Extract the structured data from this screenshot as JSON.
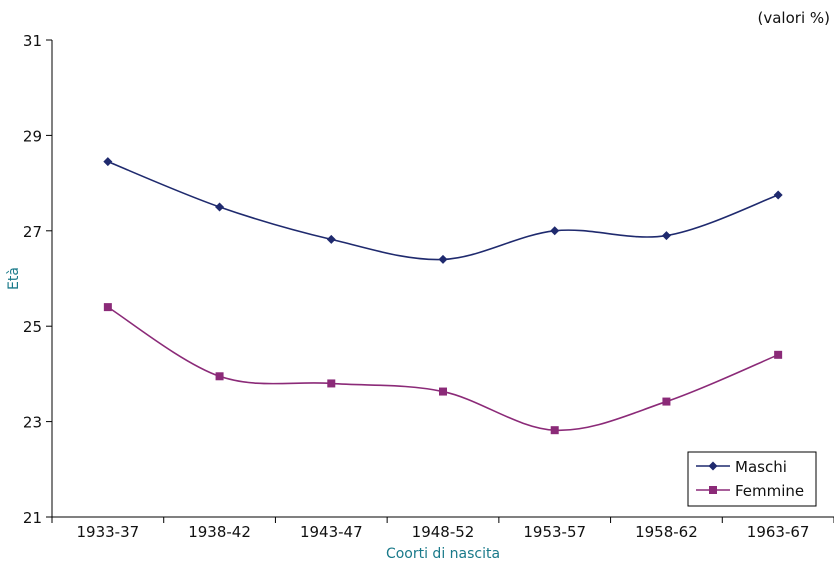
{
  "chart_data": {
    "type": "line",
    "note": "(valori %)",
    "xlabel": "Coorti di nascita",
    "ylabel": "Età",
    "categories": [
      "1933-37",
      "1938-42",
      "1943-47",
      "1948-52",
      "1953-57",
      "1958-62",
      "1963-67"
    ],
    "ylim": [
      21,
      31
    ],
    "yticks": [
      21,
      23,
      25,
      27,
      29,
      31
    ],
    "grid": false,
    "legend_position": "bottom-right",
    "title_color": "#1a7a8a",
    "series": [
      {
        "name": "Maschi",
        "color": "#1f2a6e",
        "marker": "diamond",
        "values": [
          28.45,
          27.5,
          26.82,
          26.4,
          27.0,
          26.9,
          27.75
        ]
      },
      {
        "name": "Femmine",
        "color": "#8b2a78",
        "marker": "square",
        "values": [
          25.4,
          23.95,
          23.8,
          23.63,
          22.82,
          23.42,
          24.4
        ]
      }
    ]
  }
}
